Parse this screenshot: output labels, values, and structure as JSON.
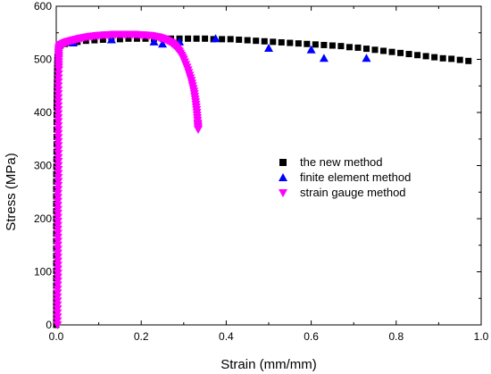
{
  "chart_data": {
    "type": "scatter",
    "title": "",
    "xlabel": "Strain (mm/mm)",
    "ylabel": "Stress (MPa)",
    "xlim": [
      0.0,
      1.0
    ],
    "ylim": [
      0,
      600
    ],
    "x_ticks": [
      "0.0",
      "0.2",
      "0.4",
      "0.6",
      "0.8",
      "1.0"
    ],
    "y_ticks": [
      "0",
      "100",
      "200",
      "300",
      "400",
      "500",
      "600"
    ],
    "grid": false,
    "legend_position": "center-right",
    "series": [
      {
        "name": "the new method",
        "marker": "square",
        "color": "#000000",
        "points": [
          [
            0.0,
            0
          ],
          [
            0.0,
            60
          ],
          [
            0.0,
            130
          ],
          [
            0.0,
            200
          ],
          [
            0.0,
            270
          ],
          [
            0.001,
            340
          ],
          [
            0.001,
            410
          ],
          [
            0.002,
            470
          ],
          [
            0.003,
            505
          ],
          [
            0.004,
            515
          ],
          [
            0.005,
            520
          ],
          [
            0.01,
            526
          ],
          [
            0.02,
            529
          ],
          [
            0.035,
            531
          ],
          [
            0.05,
            533
          ],
          [
            0.07,
            535
          ],
          [
            0.09,
            536
          ],
          [
            0.11,
            537
          ],
          [
            0.13,
            538
          ],
          [
            0.15,
            538
          ],
          [
            0.17,
            539
          ],
          [
            0.19,
            539
          ],
          [
            0.21,
            539
          ],
          [
            0.23,
            539
          ],
          [
            0.25,
            539
          ],
          [
            0.27,
            539
          ],
          [
            0.29,
            539
          ],
          [
            0.31,
            539
          ],
          [
            0.33,
            539
          ],
          [
            0.35,
            539
          ],
          [
            0.37,
            538
          ],
          [
            0.39,
            538
          ],
          [
            0.41,
            538
          ],
          [
            0.43,
            537
          ],
          [
            0.45,
            536
          ],
          [
            0.47,
            535
          ],
          [
            0.49,
            534
          ],
          [
            0.51,
            533
          ],
          [
            0.53,
            532
          ],
          [
            0.55,
            531
          ],
          [
            0.57,
            530
          ],
          [
            0.59,
            529
          ],
          [
            0.61,
            528
          ],
          [
            0.63,
            527
          ],
          [
            0.65,
            526
          ],
          [
            0.67,
            525
          ],
          [
            0.69,
            523
          ],
          [
            0.71,
            522
          ],
          [
            0.73,
            520
          ],
          [
            0.75,
            518
          ],
          [
            0.77,
            516
          ],
          [
            0.79,
            514
          ],
          [
            0.81,
            512
          ],
          [
            0.83,
            510
          ],
          [
            0.85,
            508
          ],
          [
            0.87,
            506
          ],
          [
            0.89,
            504
          ],
          [
            0.91,
            502
          ],
          [
            0.93,
            501
          ],
          [
            0.95,
            499
          ],
          [
            0.97,
            497
          ]
        ]
      },
      {
        "name": "finite element method",
        "marker": "triangle-up",
        "color": "#0000ff",
        "points": [
          [
            0.04,
            531
          ],
          [
            0.13,
            537
          ],
          [
            0.23,
            533
          ],
          [
            0.25,
            529
          ],
          [
            0.29,
            533
          ],
          [
            0.375,
            539
          ],
          [
            0.5,
            521
          ],
          [
            0.6,
            518
          ],
          [
            0.63,
            502
          ],
          [
            0.73,
            502
          ]
        ]
      },
      {
        "name": "strain gauge method",
        "marker": "triangle-down",
        "color": "#ff00ff",
        "points": [
          [
            0.003,
            0
          ],
          [
            0.003,
            30
          ],
          [
            0.003,
            60
          ],
          [
            0.004,
            90
          ],
          [
            0.004,
            120
          ],
          [
            0.004,
            150
          ],
          [
            0.004,
            180
          ],
          [
            0.004,
            210
          ],
          [
            0.004,
            240
          ],
          [
            0.005,
            270
          ],
          [
            0.005,
            300
          ],
          [
            0.005,
            330
          ],
          [
            0.005,
            360
          ],
          [
            0.005,
            390
          ],
          [
            0.005,
            420
          ],
          [
            0.005,
            450
          ],
          [
            0.006,
            480
          ],
          [
            0.006,
            500
          ],
          [
            0.006,
            515
          ],
          [
            0.007,
            522
          ],
          [
            0.01,
            527
          ],
          [
            0.02,
            531
          ],
          [
            0.03,
            534
          ],
          [
            0.045,
            537
          ],
          [
            0.06,
            540
          ],
          [
            0.08,
            543
          ],
          [
            0.1,
            545
          ],
          [
            0.12,
            546
          ],
          [
            0.14,
            547
          ],
          [
            0.16,
            547
          ],
          [
            0.18,
            547
          ],
          [
            0.2,
            546
          ],
          [
            0.22,
            545
          ],
          [
            0.24,
            542
          ],
          [
            0.255,
            538
          ],
          [
            0.27,
            532
          ],
          [
            0.28,
            525
          ],
          [
            0.29,
            515
          ],
          [
            0.3,
            500
          ],
          [
            0.31,
            480
          ],
          [
            0.318,
            460
          ],
          [
            0.324,
            440
          ],
          [
            0.328,
            420
          ],
          [
            0.331,
            400
          ],
          [
            0.333,
            380
          ],
          [
            0.334,
            368
          ]
        ]
      }
    ]
  }
}
